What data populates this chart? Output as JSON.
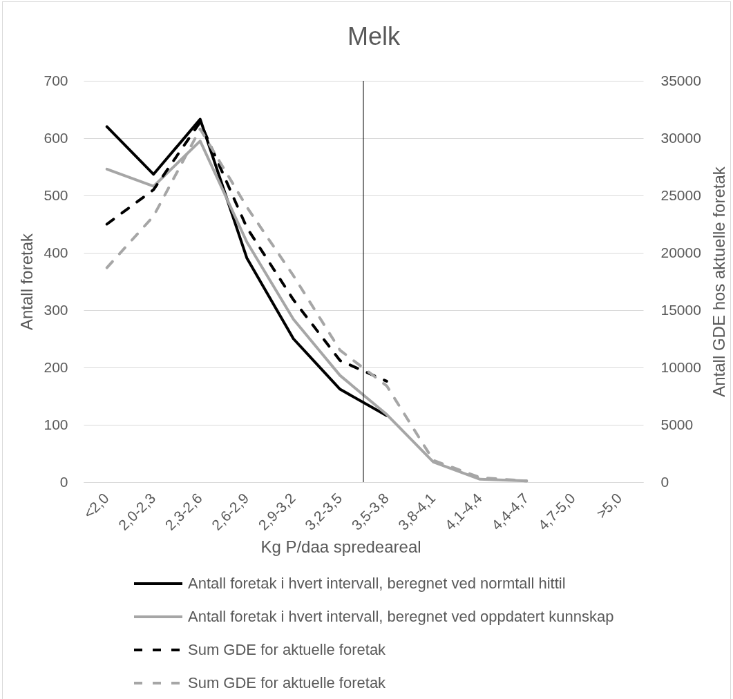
{
  "chart_data": {
    "type": "line",
    "title": "Melk",
    "xlabel": "Kg P/daa spredeareal",
    "ylabel": "Antall foretak",
    "y2label": "Antall GDE hos aktuelle foretak",
    "categories": [
      "<2,0",
      "2,0-2,3",
      "2,3-2,6",
      "2,6-2,9",
      "2,9-3,2",
      "3,2-3,5",
      "3,5-3,8",
      "3,8-4,1",
      "4,1-4,4",
      "4,4-4,7",
      "4,7-5,0",
      ">5,0"
    ],
    "series": [
      {
        "name": "Antall foretak i hvert intervall, beregnet ved normtall hittil",
        "color": "#000000",
        "line_style": "solid",
        "values": [
          620,
          537,
          633,
          391,
          250,
          162,
          116,
          null,
          null,
          null,
          null,
          null
        ]
      },
      {
        "name": "Antall foretak i hvert intervall, beregnet ved oppdatert kunnskap",
        "color": "#a6a6a6",
        "line_style": "solid",
        "values": [
          546,
          516,
          595,
          419,
          284,
          186,
          118,
          35,
          5,
          2,
          null,
          null
        ]
      },
      {
        "name": "Sum GDE for aktuelle foretak",
        "color": "#000000",
        "line_style": "dashed",
        "axis": "y2",
        "values": [
          22500,
          25500,
          31400,
          22200,
          15900,
          10600,
          8800,
          null,
          null,
          null,
          null,
          null
        ]
      },
      {
        "name": "Sum GDE for aktuelle foretak",
        "color": "#a6a6a6",
        "line_style": "dashed",
        "axis": "y2",
        "values": [
          18700,
          23200,
          30800,
          24000,
          18000,
          11500,
          8400,
          1900,
          400,
          100,
          null,
          null
        ]
      }
    ],
    "ylim": [
      0,
      700
    ],
    "yticks": [
      0,
      100,
      200,
      300,
      400,
      500,
      600,
      700
    ],
    "y2lim": [
      0,
      35000
    ],
    "y2ticks": [
      0,
      5000,
      10000,
      15000,
      20000,
      25000,
      30000,
      35000
    ],
    "grid": "y",
    "legend": "bottom",
    "ref_lines": [
      {
        "axis": "x",
        "value": "3,5-3,8",
        "color": "#000000"
      }
    ]
  }
}
